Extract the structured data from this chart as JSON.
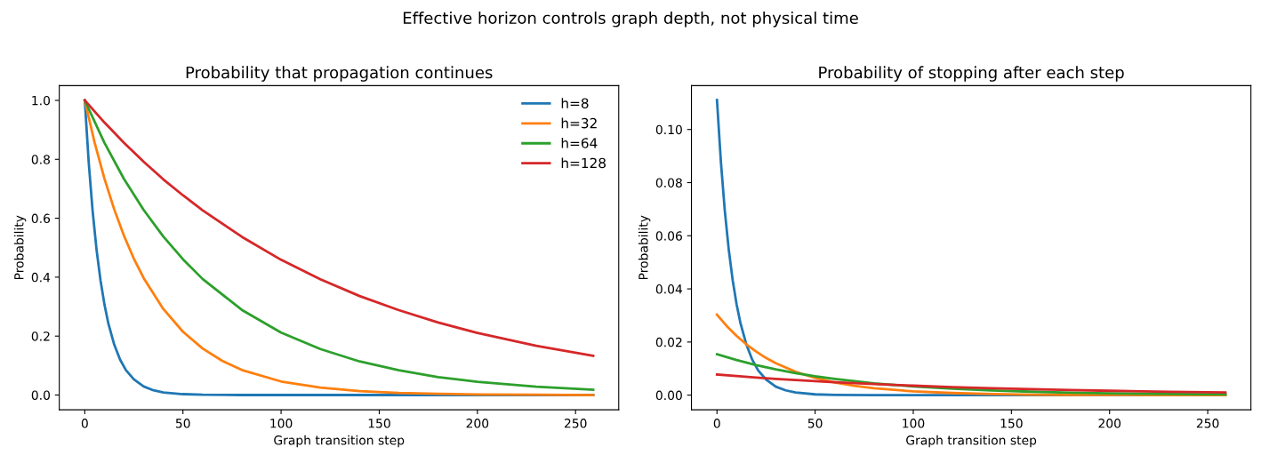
{
  "chart_data": [
    {
      "type": "line",
      "title": "Probability that propagation continues",
      "xlabel": "Graph transition step",
      "ylabel": "Probability",
      "annotations": [
        "Effective horizon controls graph depth, not physical time"
      ],
      "xlim": [
        -13,
        272
      ],
      "xticks": [
        0,
        50,
        100,
        150,
        200,
        250
      ],
      "ylim": [
        -0.05,
        1.05
      ],
      "yticks": [
        {
          "value": 0,
          "label": "0.0"
        },
        {
          "value": 0.2,
          "label": "0.2"
        },
        {
          "value": 0.4,
          "label": "0.4"
        },
        {
          "value": 0.6,
          "label": "0.6"
        },
        {
          "value": 0.8,
          "label": "0.8"
        },
        {
          "value": 1,
          "label": "1.0"
        }
      ],
      "legend": "top right",
      "grid": false,
      "line_style": "solid",
      "marker": "none",
      "series": [
        {
          "name": "h=8",
          "color": "#1f77b4",
          "x": [
            0,
            2,
            4,
            6,
            8,
            10,
            12,
            15,
            18,
            21,
            25,
            30,
            35,
            40,
            50,
            60,
            80,
            120,
            180,
            259
          ],
          "values": [
            1,
            0.79,
            0.624,
            0.493,
            0.39,
            0.308,
            0.243,
            0.171,
            0.12,
            0.084,
            0.053,
            0.029,
            0.016,
            0.009,
            0.003,
            0.001,
            0,
            0,
            0,
            0
          ]
        },
        {
          "name": "h=32",
          "color": "#ff7f0e",
          "x": [
            0,
            5,
            10,
            15,
            20,
            25,
            30,
            40,
            50,
            60,
            70,
            80,
            100,
            120,
            140,
            160,
            180,
            200,
            230,
            259
          ],
          "values": [
            1,
            0.857,
            0.735,
            0.63,
            0.54,
            0.463,
            0.397,
            0.292,
            0.215,
            0.158,
            0.116,
            0.085,
            0.046,
            0.025,
            0.013,
            0.007,
            0.004,
            0.002,
            0.001,
            0
          ]
        },
        {
          "name": "h=64",
          "color": "#2ca02c",
          "x": [
            0,
            10,
            20,
            30,
            40,
            50,
            60,
            80,
            100,
            120,
            140,
            160,
            180,
            200,
            230,
            259
          ],
          "values": [
            1,
            0.856,
            0.733,
            0.628,
            0.538,
            0.461,
            0.394,
            0.289,
            0.212,
            0.156,
            0.114,
            0.084,
            0.061,
            0.045,
            0.028,
            0.018
          ]
        },
        {
          "name": "h=128",
          "color": "#d62728",
          "x": [
            0,
            10,
            20,
            30,
            40,
            50,
            60,
            80,
            100,
            120,
            140,
            160,
            180,
            200,
            230,
            259
          ],
          "values": [
            1,
            0.925,
            0.856,
            0.792,
            0.732,
            0.678,
            0.627,
            0.537,
            0.459,
            0.393,
            0.336,
            0.288,
            0.246,
            0.211,
            0.167,
            0.133
          ]
        }
      ]
    },
    {
      "type": "line",
      "title": "Probability of stopping after each step",
      "xlabel": "Graph transition step",
      "ylabel": "Probability",
      "xlim": [
        -13,
        272
      ],
      "xticks": [
        0,
        50,
        100,
        150,
        200,
        250
      ],
      "ylim": [
        -0.0055,
        0.1165
      ],
      "yticks": [
        {
          "value": 0,
          "label": "0.00"
        },
        {
          "value": 0.02,
          "label": "0.02"
        },
        {
          "value": 0.04,
          "label": "0.04"
        },
        {
          "value": 0.06,
          "label": "0.06"
        },
        {
          "value": 0.08,
          "label": "0.08"
        },
        {
          "value": 0.1,
          "label": "0.10"
        }
      ],
      "grid": false,
      "line_style": "solid",
      "marker": "none",
      "series": [
        {
          "color": "#1f77b4",
          "x": [
            0,
            2,
            4,
            6,
            8,
            10,
            12,
            15,
            18,
            21,
            25,
            30,
            35,
            40,
            50,
            60,
            80,
            120,
            180,
            259
          ],
          "values": [
            0.1111,
            0.0878,
            0.0693,
            0.0548,
            0.0433,
            0.0342,
            0.027,
            0.019,
            0.0133,
            0.0093,
            0.0059,
            0.0032,
            0.0018,
            0.001,
            0.0003,
            0.0001,
            0,
            0,
            0,
            0
          ]
        },
        {
          "color": "#ff7f0e",
          "x": [
            0,
            5,
            10,
            15,
            20,
            25,
            30,
            40,
            50,
            60,
            70,
            80,
            100,
            120,
            140,
            160,
            180,
            200,
            230,
            259
          ],
          "values": [
            0.0303,
            0.026,
            0.0223,
            0.0191,
            0.0164,
            0.014,
            0.012,
            0.0088,
            0.0065,
            0.0048,
            0.0035,
            0.0026,
            0.0014,
            0.0008,
            0.0004,
            0.0002,
            0.0001,
            0.0001,
            0,
            0
          ]
        },
        {
          "color": "#2ca02c",
          "x": [
            0,
            10,
            20,
            30,
            40,
            50,
            60,
            80,
            100,
            120,
            140,
            160,
            180,
            200,
            230,
            259
          ],
          "values": [
            0.0154,
            0.0132,
            0.0113,
            0.0097,
            0.0083,
            0.0071,
            0.0061,
            0.0044,
            0.0033,
            0.0024,
            0.0018,
            0.0013,
            0.0009,
            0.0007,
            0.0004,
            0.0003
          ]
        },
        {
          "color": "#d62728",
          "x": [
            0,
            10,
            20,
            30,
            40,
            50,
            60,
            80,
            100,
            120,
            140,
            160,
            180,
            200,
            230,
            259
          ],
          "values": [
            0.00775,
            0.00717,
            0.00664,
            0.00614,
            0.00568,
            0.00525,
            0.00486,
            0.00416,
            0.00356,
            0.00305,
            0.0026,
            0.00223,
            0.00191,
            0.00164,
            0.00129,
            0.00103
          ]
        }
      ]
    }
  ]
}
